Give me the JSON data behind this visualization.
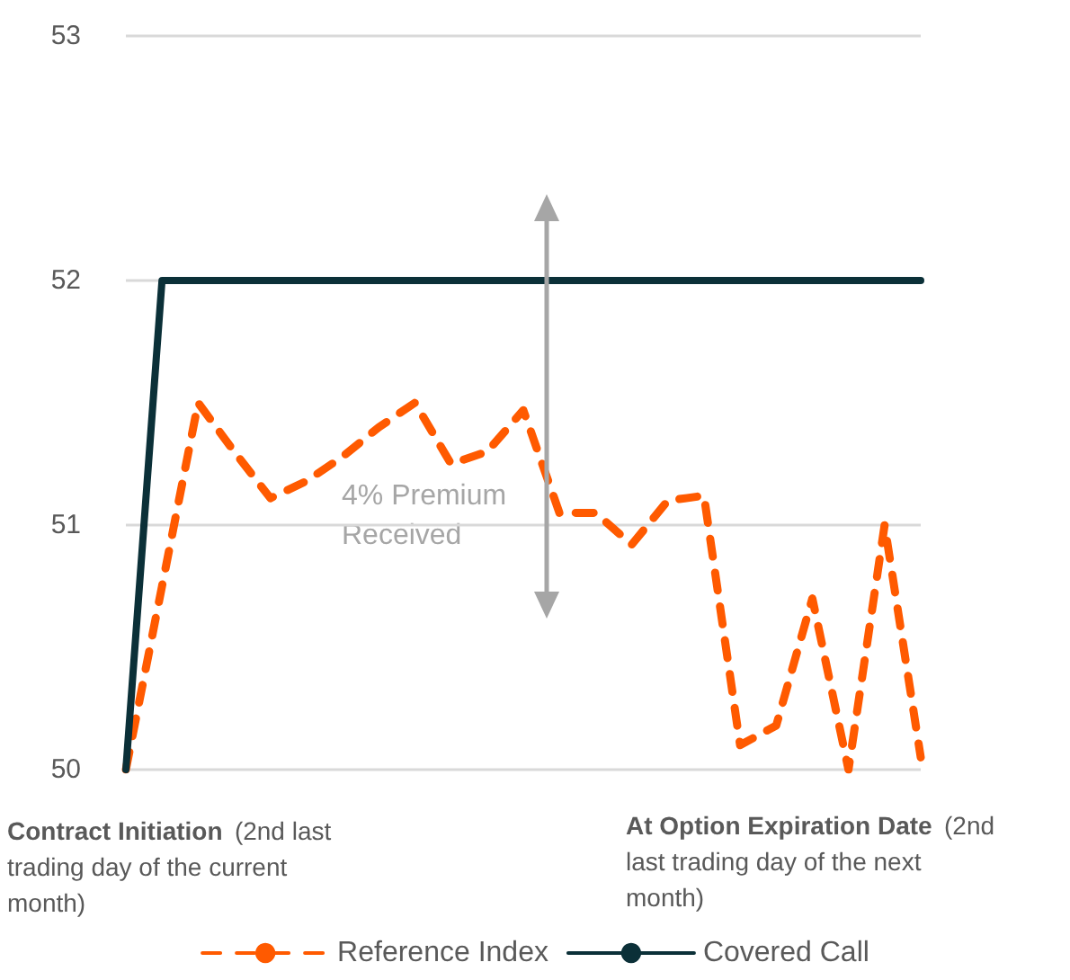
{
  "chart_data": {
    "type": "line",
    "categories": [
      null,
      null,
      null,
      null,
      null,
      null,
      null,
      null,
      null,
      null,
      null,
      null,
      null,
      null,
      null,
      null,
      null,
      null,
      null,
      null,
      null,
      null,
      null
    ],
    "series": [
      {
        "name": "Reference Index",
        "color": "#ff5a00",
        "line_style": "dashed",
        "values": [
          50.0,
          50.75,
          51.5,
          51.3,
          51.11,
          51.18,
          51.28,
          51.4,
          51.5,
          51.25,
          51.3,
          51.47,
          51.05,
          51.05,
          50.92,
          51.1,
          51.12,
          50.1,
          50.18,
          50.7,
          50.0,
          51.0,
          50.05
        ]
      },
      {
        "name": "Covered Call",
        "color": "#0b3038",
        "line_style": "solid",
        "values": [
          50,
          52,
          52,
          52,
          52,
          52,
          52,
          52,
          52,
          52,
          52,
          52,
          52,
          52,
          52,
          52,
          52,
          52,
          52,
          52,
          52,
          52,
          52
        ]
      }
    ],
    "ylim": [
      50,
      53
    ],
    "yticks": [
      50,
      51,
      52,
      53
    ],
    "grid": "y",
    "legend": "bottom",
    "marker": "none",
    "tick_labels": "y",
    "annotations": [
      "4% Premium Received",
      "Contract Initiation (2nd last trading day of the current month)",
      "At Option Expiration Date (2nd last trading day of the next month)"
    ]
  }
}
